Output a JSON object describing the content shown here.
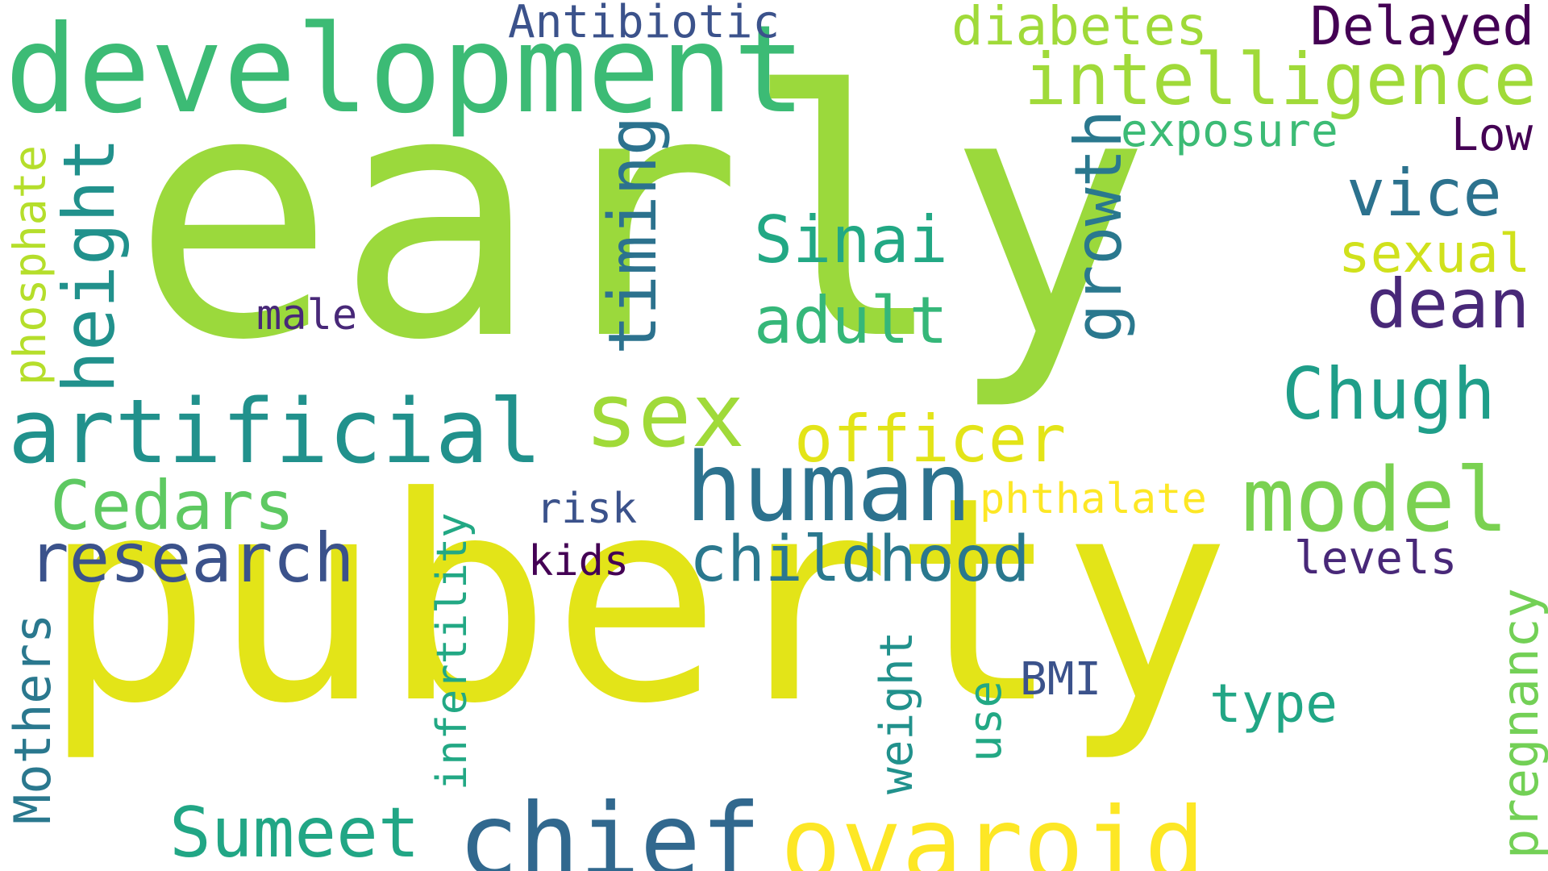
{
  "cloud": {
    "words": [
      {
        "text": "early",
        "color": "#9bd93c"
      },
      {
        "text": "puberty",
        "color": "#e3e418"
      },
      {
        "text": "development",
        "color": "#3cbb75"
      },
      {
        "text": "Antibiotic",
        "color": "#3b528b"
      },
      {
        "text": "diabetes",
        "color": "#a0da39"
      },
      {
        "text": "Delayed",
        "color": "#440154"
      },
      {
        "text": "intelligence",
        "color": "#a0da39"
      },
      {
        "text": "exposure",
        "color": "#3cbb75"
      },
      {
        "text": "Low",
        "color": "#440154"
      },
      {
        "text": "vice",
        "color": "#2c728e"
      },
      {
        "text": "sexual",
        "color": "#d0e11c"
      },
      {
        "text": "dean",
        "color": "#482878"
      },
      {
        "text": "Chugh",
        "color": "#1f9e89"
      },
      {
        "text": "model",
        "color": "#7ad151"
      },
      {
        "text": "levels",
        "color": "#482878"
      },
      {
        "text": "pregnancy",
        "color": "#73d056"
      },
      {
        "text": "type",
        "color": "#21a685"
      },
      {
        "text": "BMI",
        "color": "#3b528b"
      },
      {
        "text": "phthalate",
        "color": "#fde725"
      },
      {
        "text": "officer",
        "color": "#e3e418"
      },
      {
        "text": "Sinai",
        "color": "#22a884"
      },
      {
        "text": "adult",
        "color": "#35b779"
      },
      {
        "text": "growth",
        "color": "#2a788e"
      },
      {
        "text": "timing",
        "color": "#2c728e"
      },
      {
        "text": "human",
        "color": "#2c728e"
      },
      {
        "text": "childhood",
        "color": "#2a788e"
      },
      {
        "text": "sex",
        "color": "#a0da39"
      },
      {
        "text": "artificial",
        "color": "#21918c"
      },
      {
        "text": "height",
        "color": "#21918c"
      },
      {
        "text": "phosphate",
        "color": "#b5de2b"
      },
      {
        "text": "male",
        "color": "#482878"
      },
      {
        "text": "research",
        "color": "#3b528b"
      },
      {
        "text": "Cedars",
        "color": "#5ec962"
      },
      {
        "text": "risk",
        "color": "#3b528b"
      },
      {
        "text": "kids",
        "color": "#440154"
      },
      {
        "text": "infertility",
        "color": "#22a884"
      },
      {
        "text": "chief",
        "color": "#31688e"
      },
      {
        "text": "ovaroid",
        "color": "#fde725"
      },
      {
        "text": "Sumeet",
        "color": "#21a685"
      },
      {
        "text": "Mothers",
        "color": "#2a788e"
      },
      {
        "text": "weight",
        "color": "#21918c"
      },
      {
        "text": "use",
        "color": "#22a884"
      }
    ]
  }
}
